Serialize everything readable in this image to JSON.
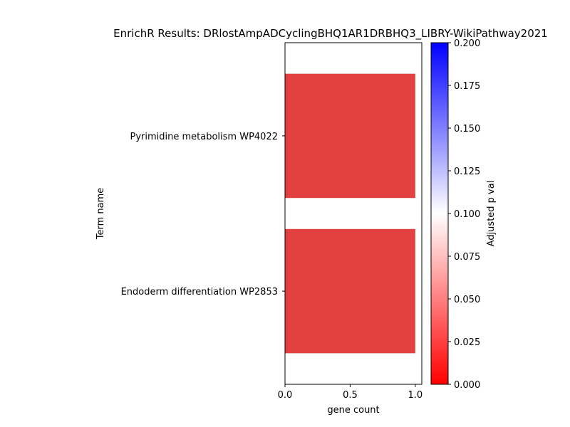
{
  "chart_data": {
    "type": "bar",
    "orientation": "horizontal",
    "title": "EnrichR Results: DRlostAmpADCyclingBHQ1AR1DRBHQ3_LIBRY-WikiPathway2021",
    "xlabel": "gene count",
    "ylabel": "Term name",
    "categories": [
      "Pyrimidine metabolism WP4022",
      "Endoderm differentiation WP2853"
    ],
    "values": [
      1,
      1
    ],
    "adjusted_p_values": [
      0.01,
      0.01
    ],
    "bar_color": "#e34040",
    "xlim": [
      0,
      1.05
    ],
    "xticks": [
      0.0,
      0.5,
      1.0
    ],
    "xtick_labels": [
      "0.0",
      "0.5",
      "1.0"
    ],
    "colorbar": {
      "label": "Adjusted p val",
      "range": [
        0.0,
        0.2
      ],
      "ticks": [
        0.0,
        0.025,
        0.05,
        0.075,
        0.1,
        0.125,
        0.15,
        0.175,
        0.2
      ],
      "tick_labels": [
        "0.000",
        "0.025",
        "0.050",
        "0.075",
        "0.100",
        "0.125",
        "0.150",
        "0.175",
        "0.200"
      ],
      "colors": [
        "#ff0000",
        "#ffffff",
        "#0000ff"
      ]
    },
    "grid": false,
    "legend": "none"
  }
}
